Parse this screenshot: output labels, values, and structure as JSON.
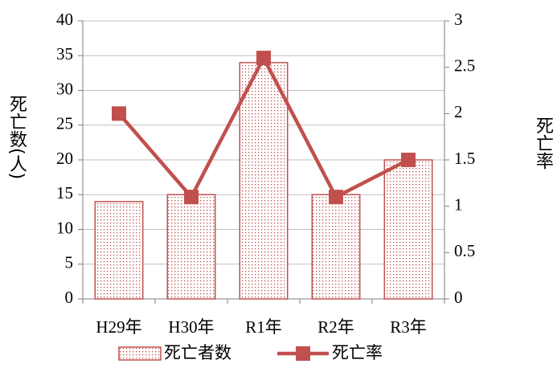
{
  "chart_data": {
    "type": "combo",
    "categories": [
      "H29年",
      "H30年",
      "R1年",
      "R2年",
      "R3年"
    ],
    "series": [
      {
        "name": "死亡者数",
        "type": "bar",
        "color": "#c0504d",
        "values": [
          14,
          15,
          34,
          15,
          20
        ]
      },
      {
        "name": "死亡率",
        "type": "line",
        "color": "#c0504d",
        "axis": "y2",
        "values": [
          2.0,
          1.1,
          2.6,
          1.1,
          1.5
        ]
      }
    ],
    "ylabel": "死亡数(人)",
    "y2label": "死亡率",
    "ylim": [
      0,
      40
    ],
    "yticks": [
      0,
      5,
      10,
      15,
      20,
      25,
      30,
      35,
      40
    ],
    "y2lim": [
      0,
      3
    ],
    "y2ticks": [
      0,
      0.5,
      1,
      1.5,
      2,
      2.5,
      3
    ],
    "grid": true,
    "legend": "bottom"
  }
}
